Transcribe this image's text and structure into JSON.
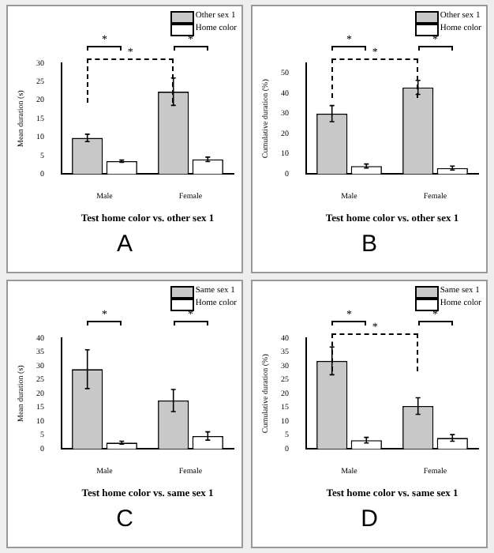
{
  "chart_data": [
    {
      "type": "bar",
      "title": "A",
      "categories": [
        "Male",
        "Female"
      ],
      "ylabel": "Mean duration (s)",
      "xlabel": "Test home color vs. other sex 1",
      "legend": "top right",
      "grid": false,
      "ylim": [
        0,
        30
      ],
      "yticks": [
        0,
        5,
        10,
        15,
        20,
        25,
        30
      ],
      "annotations": [
        "*",
        "*",
        "*"
      ],
      "series": [
        {
          "name": "Other sex 1",
          "color": "#c8c8c8",
          "values": [
            9.8,
            22.3
          ],
          "errors": [
            1,
            3.7
          ]
        },
        {
          "name": "Home color",
          "color": "#ffffff",
          "values": [
            3.5,
            4
          ],
          "errors": [
            0.3,
            0.6
          ]
        }
      ]
    },
    {
      "type": "bar",
      "title": "B",
      "categories": [
        "Male",
        "Female"
      ],
      "ylabel": "Cumulative duration (%)",
      "xlabel": "Test home color vs. other sex 1",
      "legend": "top right",
      "grid": false,
      "ylim": [
        0,
        55
      ],
      "yticks": [
        0,
        10,
        20,
        30,
        40,
        50
      ],
      "annotations": [
        "*",
        "*",
        "*"
      ],
      "series": [
        {
          "name": "Other sex 1",
          "color": "#c8c8c8",
          "values": [
            30,
            43
          ],
          "errors": [
            4,
            3.5
          ]
        },
        {
          "name": "Home color",
          "color": "#ffffff",
          "values": [
            4,
            3
          ],
          "errors": [
            1,
            1
          ]
        }
      ]
    },
    {
      "type": "bar",
      "title": "C",
      "categories": [
        "Male",
        "Female"
      ],
      "ylabel": "Mean duration (s)",
      "xlabel": "Test home color vs. same sex 1",
      "legend": "top right",
      "grid": false,
      "ylim": [
        0,
        40
      ],
      "yticks": [
        0,
        5,
        10,
        15,
        20,
        25,
        30,
        35,
        40
      ],
      "annotations": [
        "*",
        "*"
      ],
      "series": [
        {
          "name": "Same sex 1",
          "color": "#c8c8c8",
          "values": [
            28.8,
            17.5
          ],
          "errors": [
            7,
            4
          ]
        },
        {
          "name": "Home color",
          "color": "#ffffff",
          "values": [
            2.3,
            4.7
          ],
          "errors": [
            0.5,
            1.5
          ]
        }
      ]
    },
    {
      "type": "bar",
      "title": "D",
      "categories": [
        "Male",
        "Female"
      ],
      "ylabel": "Cumulative duration (%)",
      "xlabel": "Test home color vs. same sex 1",
      "legend": "top right",
      "grid": false,
      "ylim": [
        0,
        40
      ],
      "yticks": [
        0,
        5,
        10,
        15,
        20,
        25,
        30,
        35,
        40
      ],
      "annotations": [
        "*",
        "*",
        "*"
      ],
      "series": [
        {
          "name": "Same sex 1",
          "color": "#c8c8c8",
          "values": [
            31.8,
            15.5
          ],
          "errors": [
            5,
            3
          ]
        },
        {
          "name": "Home color",
          "color": "#ffffff",
          "values": [
            3.2,
            4
          ],
          "errors": [
            1,
            1.2
          ]
        }
      ]
    }
  ]
}
